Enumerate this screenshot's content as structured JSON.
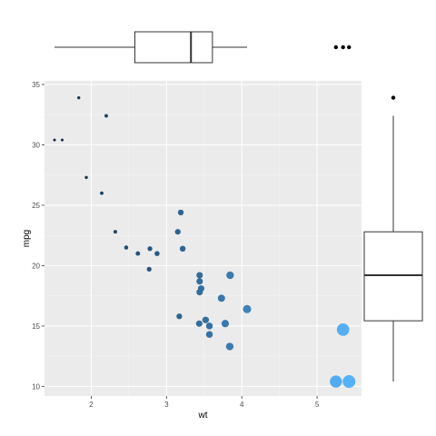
{
  "chart_data": {
    "type": "scatter",
    "xlabel": "wt",
    "ylabel": "mpg",
    "xlim": [
      1.38,
      5.59
    ],
    "ylim": [
      9.2,
      35.3
    ],
    "x_ticks": [
      2,
      3,
      4,
      5
    ],
    "y_ticks": [
      10,
      15,
      20,
      25,
      30,
      35
    ],
    "grid": true,
    "background": "#ebebeb",
    "color_scale": {
      "low": "#132b43",
      "high": "#56b1f7"
    },
    "size_and_color_by": "wt",
    "points": [
      {
        "x": 1.835,
        "y": 33.9
      },
      {
        "x": 2.2,
        "y": 32.4
      },
      {
        "x": 1.513,
        "y": 30.4
      },
      {
        "x": 1.615,
        "y": 30.4
      },
      {
        "x": 1.935,
        "y": 27.3
      },
      {
        "x": 2.14,
        "y": 26.0
      },
      {
        "x": 3.19,
        "y": 24.4
      },
      {
        "x": 2.32,
        "y": 22.8
      },
      {
        "x": 3.15,
        "y": 22.8
      },
      {
        "x": 2.465,
        "y": 21.5
      },
      {
        "x": 2.78,
        "y": 21.4
      },
      {
        "x": 3.215,
        "y": 21.4
      },
      {
        "x": 2.62,
        "y": 21.0
      },
      {
        "x": 2.875,
        "y": 21.0
      },
      {
        "x": 2.77,
        "y": 19.7
      },
      {
        "x": 3.44,
        "y": 19.2
      },
      {
        "x": 3.845,
        "y": 19.2
      },
      {
        "x": 3.44,
        "y": 18.7
      },
      {
        "x": 3.46,
        "y": 18.1
      },
      {
        "x": 3.44,
        "y": 17.8
      },
      {
        "x": 3.73,
        "y": 17.3
      },
      {
        "x": 4.07,
        "y": 16.4
      },
      {
        "x": 3.17,
        "y": 15.8
      },
      {
        "x": 3.52,
        "y": 15.5
      },
      {
        "x": 3.435,
        "y": 15.2
      },
      {
        "x": 3.78,
        "y": 15.2
      },
      {
        "x": 3.57,
        "y": 15.0
      },
      {
        "x": 5.345,
        "y": 14.7
      },
      {
        "x": 3.57,
        "y": 14.3
      },
      {
        "x": 3.84,
        "y": 13.3
      },
      {
        "x": 5.25,
        "y": 10.4
      },
      {
        "x": 5.424,
        "y": 10.4
      }
    ],
    "marginal_x_boxplot": {
      "variable": "wt",
      "min": 1.513,
      "q1": 2.58,
      "median": 3.325,
      "q3": 3.61,
      "max": 4.07,
      "outliers": [
        5.25,
        5.345,
        5.424
      ]
    },
    "marginal_y_boxplot": {
      "variable": "mpg",
      "min": 10.4,
      "q1": 15.43,
      "median": 19.2,
      "q3": 22.8,
      "max": 32.4,
      "outliers": [
        33.9
      ]
    }
  }
}
